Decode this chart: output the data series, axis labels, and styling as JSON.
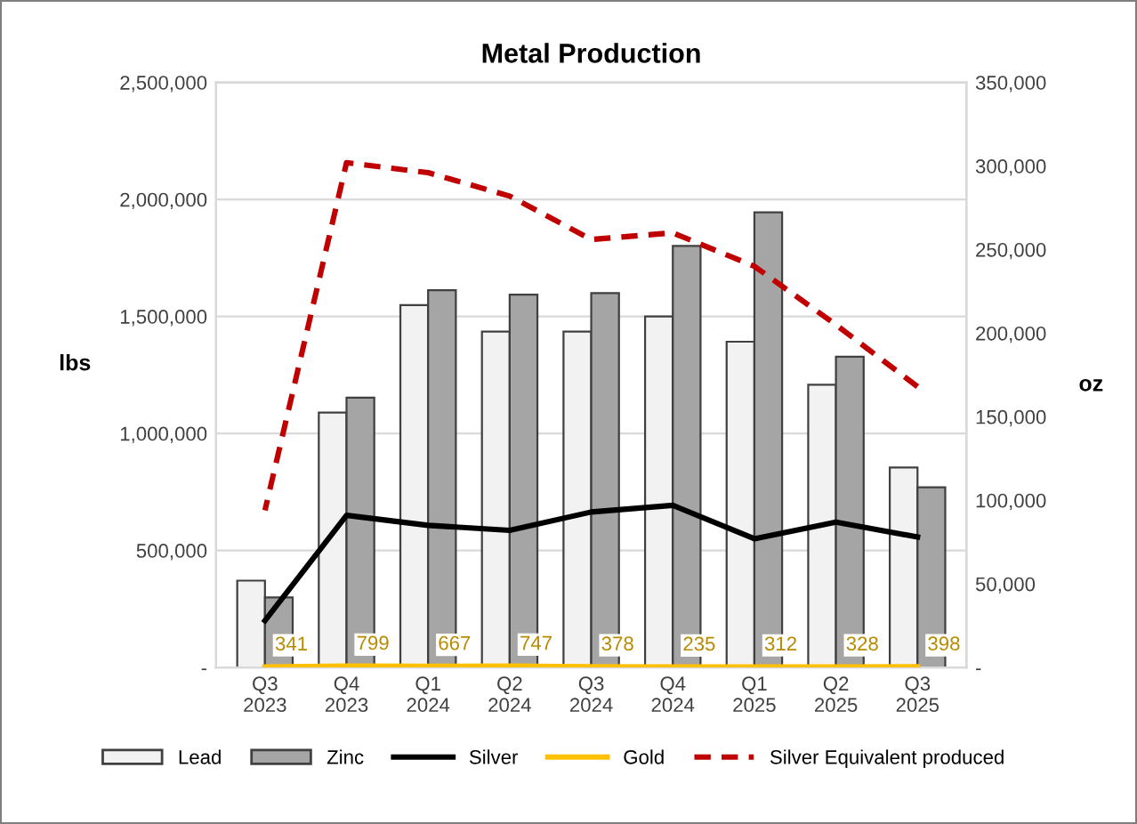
{
  "chart_data": {
    "type": "bar",
    "title": "Metal Production",
    "ylabel": "lbs",
    "y2label": "oz",
    "categories": [
      "Q3\n2023",
      "Q4\n2023",
      "Q1\n2024",
      "Q2\n2024",
      "Q3\n2024",
      "Q4\n2024",
      "Q1\n2025",
      "Q2\n2025",
      "Q3\n2025"
    ],
    "series": [
      {
        "name": "Lead",
        "color": "#f2f2f2",
        "values": [
          371000,
          1089000,
          1548000,
          1435000,
          1435000,
          1500000,
          1392000,
          1208000,
          854000
        ]
      },
      {
        "name": "Zinc",
        "color": "#a5a5a5",
        "values": [
          299000,
          1153000,
          1612000,
          1593000,
          1600000,
          1801000,
          1945000,
          1328000,
          770000
        ]
      },
      {
        "name": "Silver",
        "type": "line",
        "axis": "y2",
        "color": "#000000",
        "line_style": "solid",
        "values": [
          28000,
          91000,
          85000,
          82000,
          93000,
          97000,
          77000,
          87000,
          78000
        ]
      },
      {
        "name": "Gold",
        "type": "line",
        "axis": "y2",
        "color": "#ffc000",
        "line_style": "solid",
        "values": [
          341,
          799,
          667,
          747,
          378,
          235,
          312,
          328,
          398
        ],
        "value_labels": [
          "341",
          "799",
          "667",
          "747",
          "378",
          "235",
          "312",
          "328",
          "398"
        ]
      },
      {
        "name": "Silver Equivalent produced",
        "type": "line",
        "axis": "y2",
        "color": "#c00000",
        "line_style": "dashed",
        "values": [
          94000,
          302000,
          296000,
          282000,
          256000,
          260000,
          240000,
          205000,
          168000
        ]
      }
    ],
    "ylim": [
      0,
      2500000
    ],
    "yticks": [
      {
        "value": 0,
        "label": "-"
      },
      {
        "value": 500000,
        "label": "500,000"
      },
      {
        "value": 1000000,
        "label": "1,000,000"
      },
      {
        "value": 1500000,
        "label": "1,500,000"
      },
      {
        "value": 2000000,
        "label": "2,000,000"
      },
      {
        "value": 2500000,
        "label": "2,500,000"
      }
    ],
    "y2lim": [
      0,
      350000
    ],
    "y2ticks": [
      {
        "value": 0,
        "label": "-"
      },
      {
        "value": 50000,
        "label": "50,000"
      },
      {
        "value": 100000,
        "label": "100,000"
      },
      {
        "value": 150000,
        "label": "150,000"
      },
      {
        "value": 200000,
        "label": "200,000"
      },
      {
        "value": 250000,
        "label": "250,000"
      },
      {
        "value": 300000,
        "label": "300,000"
      },
      {
        "value": 350000,
        "label": "350,000"
      }
    ],
    "grid": "y",
    "legend": "bottom",
    "marker": "none"
  }
}
